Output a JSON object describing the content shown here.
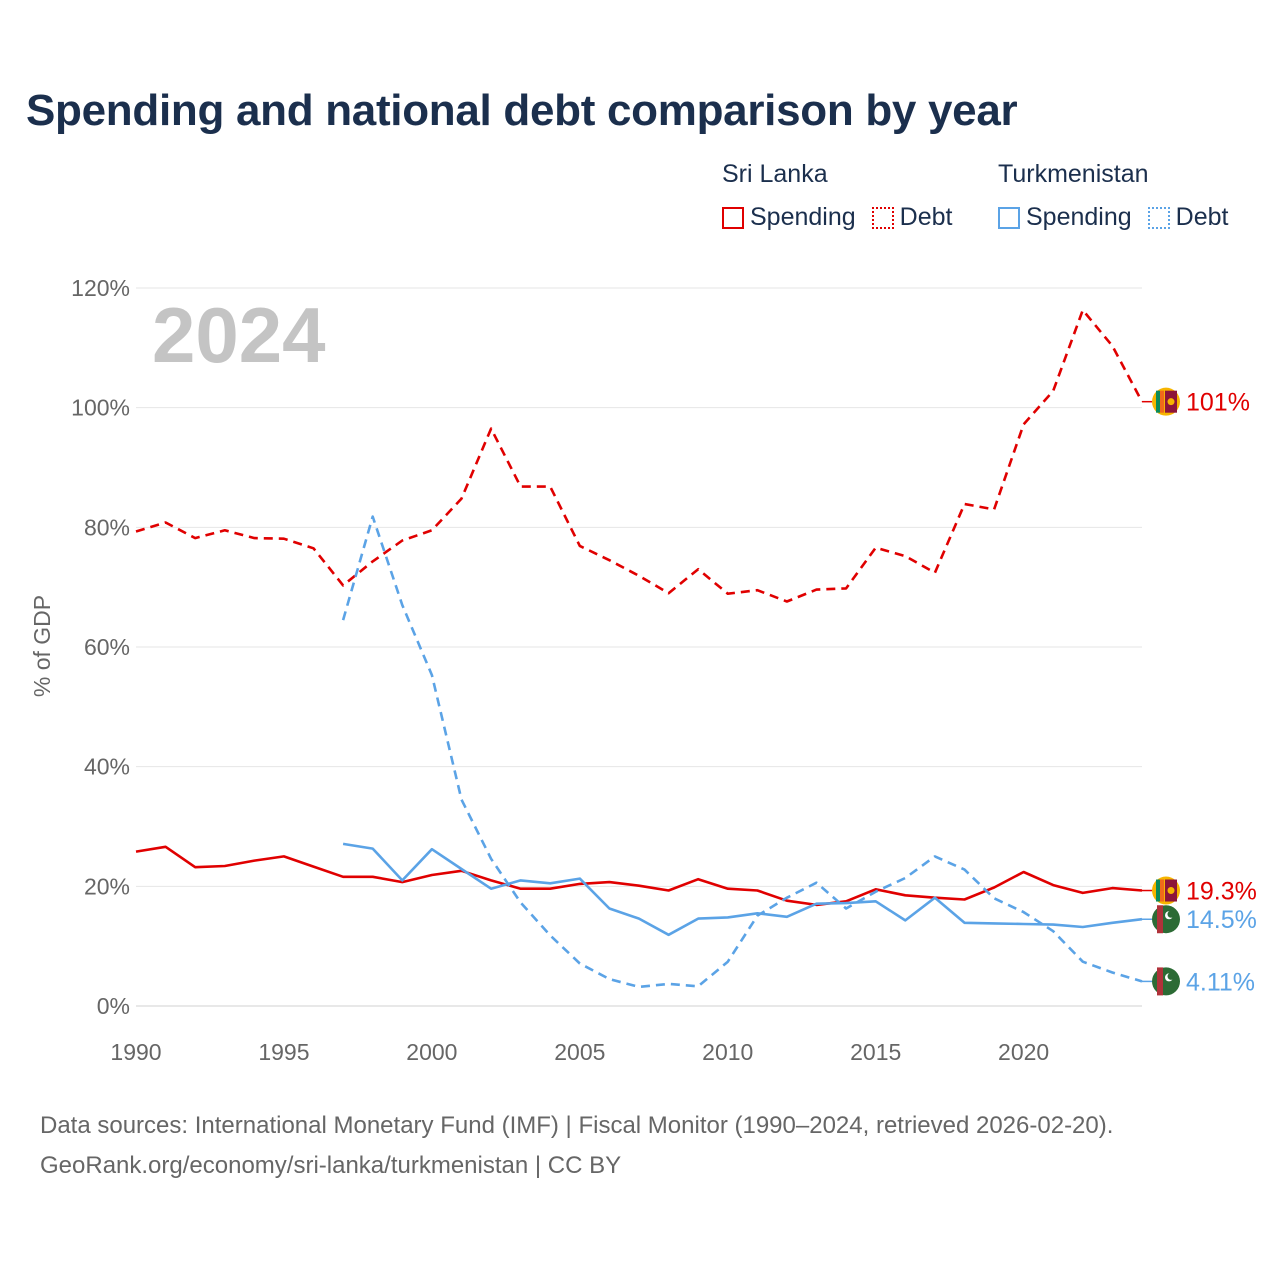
{
  "title": "Spending and national debt comparison by year",
  "legend": {
    "groups": [
      {
        "name": "Sri Lanka",
        "items": [
          {
            "label": "Spending"
          },
          {
            "label": "Debt"
          }
        ]
      },
      {
        "name": "Turkmenistan",
        "items": [
          {
            "label": "Spending"
          },
          {
            "label": "Debt"
          }
        ]
      }
    ]
  },
  "colors": {
    "sri_lanka": "#e00000",
    "turkmenistan": "#5ba3e6",
    "grid": "#e6e6e6",
    "axis_text": "#666666",
    "year_watermark": "#c4c4c4"
  },
  "year_label": "2024",
  "chart_data": {
    "type": "line",
    "ylabel": "% of GDP",
    "xlabel": "",
    "xlim": [
      1990,
      2024
    ],
    "ylim": [
      0,
      120
    ],
    "x_ticks": [
      1990,
      1995,
      2000,
      2005,
      2010,
      2015,
      2020
    ],
    "y_ticks": [
      0,
      20,
      40,
      60,
      80,
      100,
      120
    ],
    "y_tick_labels": [
      "0%",
      "20%",
      "40%",
      "60%",
      "80%",
      "100%",
      "120%"
    ],
    "series": [
      {
        "name": "Sri Lanka Debt",
        "country": "Sri Lanka",
        "metric": "Debt",
        "dashed": true,
        "color": "#e00000",
        "x": [
          1990,
          1991,
          1992,
          1993,
          1994,
          1995,
          1996,
          1997,
          1998,
          1999,
          2000,
          2001,
          2002,
          2003,
          2004,
          2005,
          2006,
          2007,
          2008,
          2009,
          2010,
          2011,
          2012,
          2013,
          2014,
          2015,
          2016,
          2017,
          2018,
          2019,
          2020,
          2021,
          2022,
          2023,
          2024
        ],
        "values": [
          79.3,
          80.8,
          78.2,
          79.5,
          78.2,
          78.1,
          76.5,
          70.3,
          74.3,
          77.8,
          79.5,
          84.8,
          96.5,
          86.8,
          86.8,
          76.9,
          74.5,
          71.9,
          69.0,
          73.0,
          68.9,
          69.5,
          67.6,
          69.6,
          69.8,
          76.6,
          75.2,
          72.4,
          83.9,
          83.0,
          97.2,
          102.8,
          116.3,
          110.3,
          101.0
        ],
        "end_label": "101%"
      },
      {
        "name": "Sri Lanka Spending",
        "country": "Sri Lanka",
        "metric": "Spending",
        "dashed": false,
        "color": "#e00000",
        "x": [
          1990,
          1991,
          1992,
          1993,
          1994,
          1995,
          1996,
          1997,
          1998,
          1999,
          2000,
          2001,
          2002,
          2003,
          2004,
          2005,
          2006,
          2007,
          2008,
          2009,
          2010,
          2011,
          2012,
          2013,
          2014,
          2015,
          2016,
          2017,
          2018,
          2019,
          2020,
          2021,
          2022,
          2023,
          2024
        ],
        "values": [
          25.8,
          26.6,
          23.2,
          23.4,
          24.3,
          25.0,
          23.3,
          21.6,
          21.6,
          20.7,
          21.9,
          22.6,
          21.0,
          19.6,
          19.6,
          20.4,
          20.7,
          20.1,
          19.3,
          21.2,
          19.6,
          19.3,
          17.6,
          16.9,
          17.5,
          19.5,
          18.5,
          18.1,
          17.8,
          19.8,
          22.4,
          20.2,
          18.9,
          19.7,
          19.3
        ],
        "end_label": "19.3%"
      },
      {
        "name": "Turkmenistan Spending",
        "country": "Turkmenistan",
        "metric": "Spending",
        "dashed": false,
        "color": "#5ba3e6",
        "x": [
          1997,
          1998,
          1999,
          2000,
          2001,
          2002,
          2003,
          2004,
          2005,
          2006,
          2007,
          2008,
          2009,
          2010,
          2011,
          2012,
          2013,
          2014,
          2015,
          2016,
          2017,
          2018,
          2019,
          2020,
          2021,
          2022,
          2023,
          2024
        ],
        "values": [
          27.1,
          26.3,
          21.0,
          26.2,
          22.9,
          19.6,
          21.0,
          20.5,
          21.3,
          16.3,
          14.6,
          11.9,
          14.6,
          14.8,
          15.5,
          14.9,
          17.1,
          17.2,
          17.5,
          14.3,
          18.1,
          13.9,
          13.8,
          13.7,
          13.6,
          13.2,
          13.9,
          14.5
        ],
        "end_label": "14.5%"
      },
      {
        "name": "Turkmenistan Debt",
        "country": "Turkmenistan",
        "metric": "Debt",
        "dashed": true,
        "color": "#5ba3e6",
        "x": [
          1997,
          1998,
          1999,
          2000,
          2001,
          2002,
          2003,
          2004,
          2005,
          2006,
          2007,
          2008,
          2009,
          2010,
          2011,
          2012,
          2013,
          2014,
          2015,
          2016,
          2017,
          2018,
          2019,
          2020,
          2021,
          2022,
          2023,
          2024
        ],
        "values": [
          64.5,
          81.8,
          67.0,
          55.3,
          34.5,
          24.6,
          17.3,
          11.8,
          7.1,
          4.5,
          3.2,
          3.7,
          3.3,
          7.4,
          15.1,
          18.1,
          20.6,
          16.3,
          19.1,
          21.4,
          25.0,
          22.8,
          18.0,
          15.7,
          12.5,
          7.4,
          5.6,
          4.11
        ],
        "end_label": "4.11%"
      }
    ]
  },
  "footer": {
    "line1": "Data sources: International Monetary Fund (IMF) | Fiscal Monitor (1990–2024, retrieved 2026-02-20).",
    "line2": "GeoRank.org/economy/sri-lanka/turkmenistan | CC BY"
  }
}
